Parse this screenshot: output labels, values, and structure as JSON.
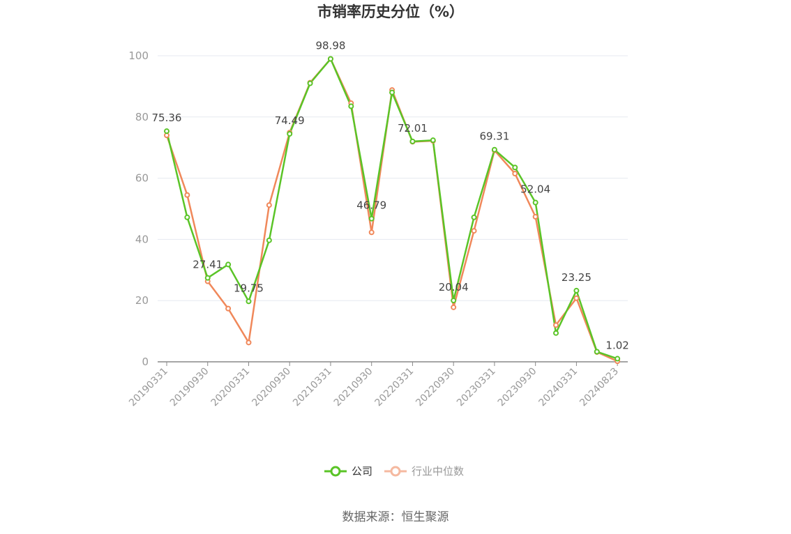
{
  "chart_data": {
    "type": "line",
    "title": "市销率历史分位（%）",
    "ylim": [
      0,
      100
    ],
    "yticks": [
      "0",
      "20",
      "40",
      "60",
      "80",
      "100"
    ],
    "x_tick_labels": [
      "20190331",
      "20190930",
      "20200331",
      "20200930",
      "20210331",
      "20210930",
      "20220331",
      "20220930",
      "20230331",
      "20230930",
      "20240331",
      "20240823"
    ],
    "x_tick_index": [
      0,
      2,
      4,
      6,
      8,
      10,
      12,
      14,
      16,
      18,
      20,
      22
    ],
    "grid": true,
    "legend_position": "bottom",
    "series": [
      {
        "name": "公司",
        "color": "#5ac427",
        "values": [
          75.36,
          47.2,
          27.41,
          31.8,
          19.75,
          39.7,
          74.49,
          91.0,
          98.98,
          83.5,
          46.79,
          88.0,
          72.01,
          72.4,
          20.04,
          47.2,
          69.31,
          63.5,
          52.04,
          9.4,
          23.25,
          3.3,
          1.02
        ]
      },
      {
        "name": "行业中位数",
        "color": "#f0885a",
        "values": [
          74.0,
          54.5,
          26.3,
          17.4,
          6.3,
          51.2,
          74.9,
          91.2,
          98.98,
          84.5,
          42.3,
          88.8,
          71.9,
          72.2,
          17.8,
          42.8,
          69.1,
          61.5,
          47.4,
          12.0,
          20.8,
          3.2,
          0.2
        ]
      }
    ],
    "data_labels": [
      {
        "index": 0,
        "text": "75.36"
      },
      {
        "index": 2,
        "text": "27.41"
      },
      {
        "index": 4,
        "text": "19.75"
      },
      {
        "index": 6,
        "text": "74.49"
      },
      {
        "index": 8,
        "text": "98.98"
      },
      {
        "index": 10,
        "text": "46.79"
      },
      {
        "index": 12,
        "text": "72.01"
      },
      {
        "index": 14,
        "text": "20.04"
      },
      {
        "index": 16,
        "text": "69.31"
      },
      {
        "index": 18,
        "text": "52.04"
      },
      {
        "index": 20,
        "text": "23.25"
      },
      {
        "index": 22,
        "text": "1.02"
      }
    ]
  },
  "source": "数据来源：恒生聚源"
}
